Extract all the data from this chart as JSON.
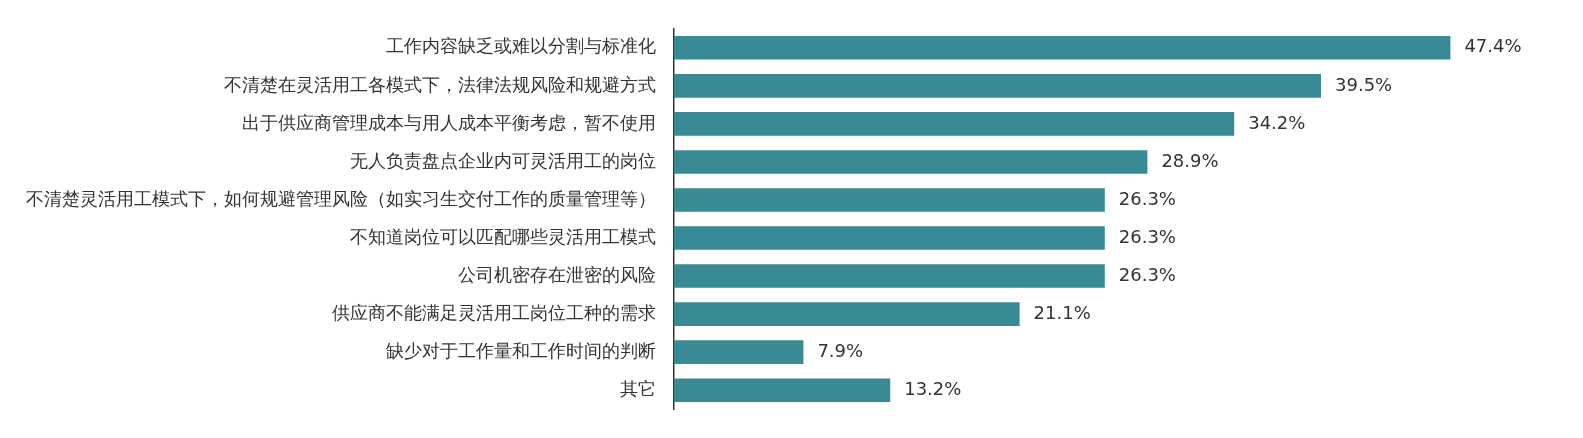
{
  "chart_data": {
    "type": "bar",
    "orientation": "horizontal",
    "categories": [
      "工作内容缺乏或难以分割与标准化",
      "不清楚在灵活用工各模式下，法律法规风险和规避方式",
      "出于供应商管理成本与用人成本平衡考虑，暂不使用",
      "无人负责盘点企业内可灵活用工的岗位",
      "不清楚灵活用工模式下，如何规避管理风险（如实习生交付工作的质量管理等）",
      "不知道岗位可以匹配哪些灵活用工模式",
      "公司机密存在泄密的风险",
      "供应商不能满足灵活用工岗位工种的需求",
      "缺少对于工作量和工作时间的判断",
      "其它"
    ],
    "values": [
      47.4,
      39.5,
      34.2,
      28.9,
      26.3,
      26.3,
      26.3,
      21.1,
      7.9,
      13.2
    ],
    "value_labels": [
      "47.4%",
      "39.5%",
      "34.2%",
      "28.9%",
      "26.3%",
      "26.3%",
      "26.3%",
      "21.1%",
      "7.9%",
      "13.2%"
    ],
    "color": "#388b95",
    "tick_labels": "y",
    "legend": false
  }
}
